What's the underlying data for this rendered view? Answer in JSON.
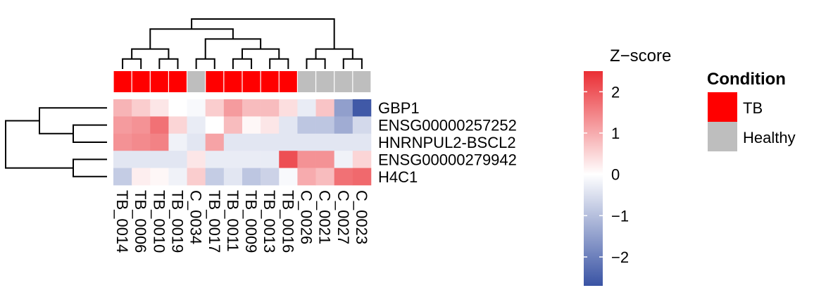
{
  "chart_data": {
    "type": "heatmap",
    "title": "",
    "columns": [
      "TB_0014",
      "TB_0006",
      "TB_0010",
      "TB_0019",
      "C_0034",
      "TB_0017",
      "TB_0011",
      "TB_0009",
      "TB_0013",
      "TB_0016",
      "C_0026",
      "C_0021",
      "C_0027",
      "C_0023"
    ],
    "column_condition": [
      "TB",
      "TB",
      "TB",
      "TB",
      "Healthy",
      "TB",
      "TB",
      "TB",
      "TB",
      "TB",
      "Healthy",
      "Healthy",
      "Healthy",
      "Healthy"
    ],
    "rows": [
      "GBP1",
      "ENSG00000257252",
      "HNRNPUL2-BSCL2",
      "ENSG00000279942",
      "H4C1"
    ],
    "values": [
      [
        0.9,
        0.6,
        0.3,
        0.0,
        -0.1,
        0.6,
        1.2,
        0.8,
        0.8,
        0.4,
        -0.3,
        0.7,
        -1.5,
        -2.6
      ],
      [
        1.2,
        1.3,
        1.7,
        0.5,
        -0.3,
        0.0,
        0.8,
        0.1,
        0.3,
        -0.4,
        -0.9,
        -0.9,
        -1.3,
        -0.6
      ],
      [
        1.3,
        1.4,
        1.5,
        -0.2,
        -0.4,
        1.1,
        -0.4,
        -0.4,
        -0.4,
        -0.4,
        -0.4,
        -0.4,
        -0.4,
        -0.4
      ],
      [
        -0.4,
        -0.4,
        -0.4,
        -0.4,
        0.3,
        -0.3,
        -0.3,
        -0.3,
        -0.3,
        2.1,
        1.3,
        1.3,
        -0.2,
        0.5
      ],
      [
        -0.8,
        0.2,
        0.1,
        -0.2,
        0.6,
        -0.8,
        -0.4,
        -0.9,
        -0.7,
        -0.1,
        1.0,
        0.8,
        1.7,
        1.8
      ]
    ],
    "column_dendrogram": [
      [
        0,
        1
      ],
      [
        2,
        3
      ],
      [
        -1,
        -2
      ],
      [
        4,
        5
      ],
      [
        6,
        7
      ],
      [
        8,
        9
      ],
      [
        -5,
        -6
      ],
      [
        -4,
        -7
      ],
      [
        -3,
        -8
      ],
      [
        10,
        11
      ],
      [
        12,
        13
      ],
      [
        -10,
        -11
      ],
      [
        -9,
        -12
      ]
    ],
    "row_dendrogram": [
      [
        1,
        2
      ],
      [
        0,
        -1
      ],
      [
        3,
        4
      ],
      [
        -2,
        -3
      ]
    ],
    "color_scale": {
      "low": "#3953a4",
      "mid": "#ffffff",
      "high": "#ea2e34",
      "min": -2.7,
      "max": 2.5,
      "ticks": [
        "2",
        "1",
        "0",
        "−1",
        "−2"
      ],
      "tick_values": [
        2,
        1,
        0,
        -1,
        -2
      ]
    },
    "colorbar_title": "Z−score",
    "annotation": {
      "title": "Condition",
      "levels": [
        {
          "name": "TB",
          "color": "#ff0000"
        },
        {
          "name": "Healthy",
          "color": "#bebebe"
        }
      ]
    }
  }
}
